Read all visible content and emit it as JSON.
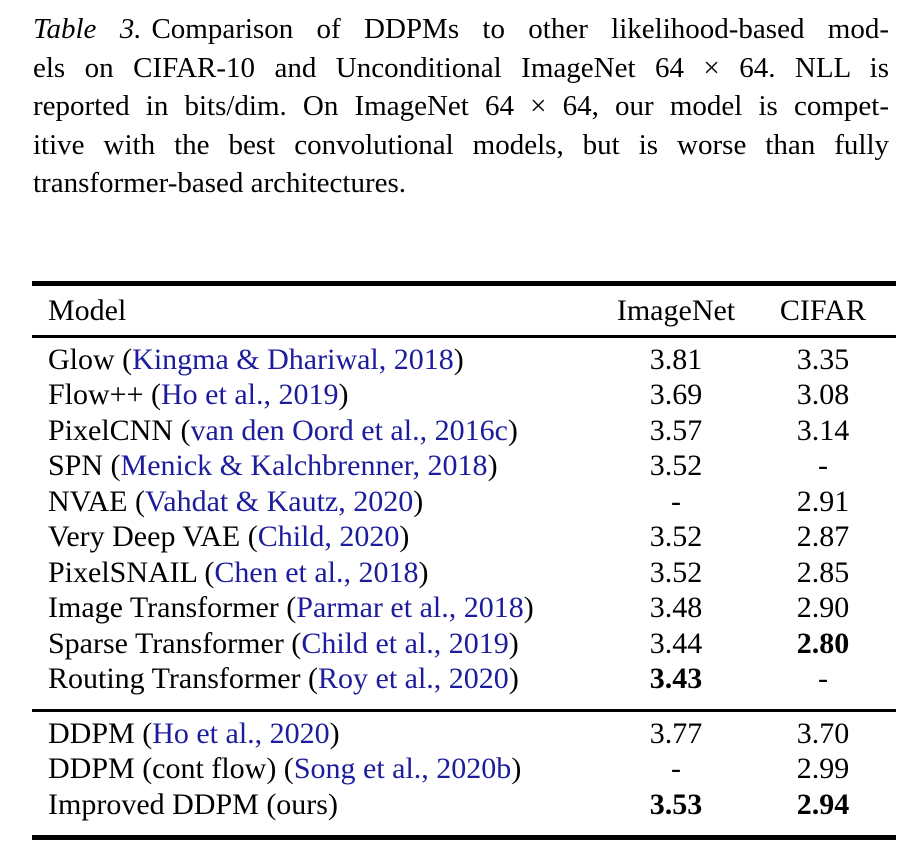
{
  "caption": {
    "label": "Table 3.",
    "lines": [
      {
        "label": "Table 3.",
        "text": "Comparison of DDPMs to other likelihood-based mod-",
        "justify": true
      },
      {
        "text": "els on CIFAR-10 and Unconditional ImageNet 64 × 64. NLL is",
        "justify": true
      },
      {
        "text": "reported in bits/dim. On ImageNet 64 × 64, our model is compet-",
        "justify": true
      },
      {
        "text": "itive with the best convolutional models, but is worse than fully",
        "justify": true
      },
      {
        "text": "transformer-based architectures.",
        "justify": false
      }
    ]
  },
  "colors": {
    "text": "#000000",
    "background": "#ffffff",
    "citation_link": "#1c1c9c"
  },
  "table": {
    "columns": [
      "Model",
      "ImageNet",
      "CIFAR"
    ],
    "sections": [
      {
        "name": "baselines",
        "rows": [
          {
            "prefix": "Glow (",
            "citation": "Kingma & Dhariwal, 2018",
            "suffix": ")",
            "imagenet": "3.81",
            "cifar": "3.35",
            "imagenet_bold": false,
            "cifar_bold": false
          },
          {
            "prefix": "Flow++ (",
            "citation": "Ho et al., 2019",
            "suffix": ")",
            "imagenet": "3.69",
            "cifar": "3.08",
            "imagenet_bold": false,
            "cifar_bold": false
          },
          {
            "prefix": "PixelCNN (",
            "citation": "van den Oord et al., 2016c",
            "suffix": ")",
            "imagenet": "3.57",
            "cifar": "3.14",
            "imagenet_bold": false,
            "cifar_bold": false
          },
          {
            "prefix": "SPN (",
            "citation": "Menick & Kalchbrenner, 2018",
            "suffix": ")",
            "imagenet": "3.52",
            "cifar": "-",
            "imagenet_bold": false,
            "cifar_bold": false
          },
          {
            "prefix": "NVAE (",
            "citation": "Vahdat & Kautz, 2020",
            "suffix": ")",
            "imagenet": "-",
            "cifar": "2.91",
            "imagenet_bold": false,
            "cifar_bold": false
          },
          {
            "prefix": "Very Deep VAE (",
            "citation": "Child, 2020",
            "suffix": ")",
            "imagenet": "3.52",
            "cifar": "2.87",
            "imagenet_bold": false,
            "cifar_bold": false
          },
          {
            "prefix": "PixelSNAIL (",
            "citation": "Chen et al., 2018",
            "suffix": ")",
            "imagenet": "3.52",
            "cifar": "2.85",
            "imagenet_bold": false,
            "cifar_bold": false
          },
          {
            "prefix": "Image Transformer (",
            "citation": "Parmar et al., 2018",
            "suffix": ")",
            "imagenet": "3.48",
            "cifar": "2.90",
            "imagenet_bold": false,
            "cifar_bold": false
          },
          {
            "prefix": "Sparse Transformer (",
            "citation": "Child et al., 2019",
            "suffix": ")",
            "imagenet": "3.44",
            "cifar": "2.80",
            "imagenet_bold": false,
            "cifar_bold": true
          },
          {
            "prefix": "Routing Transformer (",
            "citation": "Roy et al., 2020",
            "suffix": ")",
            "imagenet": "3.43",
            "cifar": "-",
            "imagenet_bold": true,
            "cifar_bold": false
          }
        ]
      },
      {
        "name": "ddpm",
        "rows": [
          {
            "prefix": "DDPM (",
            "citation": "Ho et al., 2020",
            "suffix": ")",
            "imagenet": "3.77",
            "cifar": "3.70",
            "imagenet_bold": false,
            "cifar_bold": false
          },
          {
            "prefix": "DDPM (cont flow) (",
            "citation": "Song et al., 2020b",
            "suffix": ")",
            "imagenet": "-",
            "cifar": "2.99",
            "imagenet_bold": false,
            "cifar_bold": false
          },
          {
            "prefix": "Improved DDPM (ours)",
            "citation": "",
            "suffix": "",
            "imagenet": "3.53",
            "cifar": "2.94",
            "imagenet_bold": true,
            "cifar_bold": true
          }
        ]
      }
    ]
  }
}
